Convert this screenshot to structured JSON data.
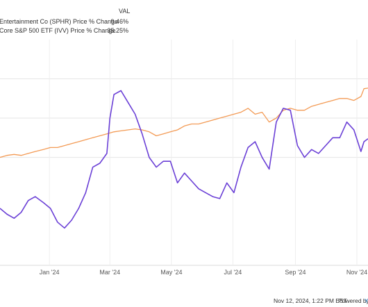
{
  "legend": {
    "header": "VAL",
    "rows": [
      {
        "label": "Entertainment Co (SPHR) Price % Change",
        "value": "9.46%",
        "color": "#6a3fd6"
      },
      {
        "label": "Core S&P 500 ETF (IVV) Price % Change",
        "value": "35.25%",
        "color": "#f39a54"
      }
    ]
  },
  "footer": {
    "timestamp": "Nov 12, 2024, 1:22 PM EST",
    "powered_by": "Powered by"
  },
  "chart_data": {
    "type": "line",
    "xlabel": "",
    "ylabel": "",
    "x_ticks": [
      "Jan '24",
      "Mar '24",
      "May '24",
      "Jul '24",
      "Sep '24",
      "Nov '24"
    ],
    "x_tick_dates": [
      "2024-01-01",
      "2024-03-01",
      "2024-05-01",
      "2024-07-01",
      "2024-09-01",
      "2024-11-01"
    ],
    "x_range": [
      "2023-11-13",
      "2024-11-12"
    ],
    "y_range": [
      -55,
      60
    ],
    "grid": {
      "horizontal_at": [
        0,
        20,
        40
      ],
      "vertical": true
    },
    "y_tick_labels_visible": false,
    "legend_placement": "top-left",
    "series": [
      {
        "name": "Entertainment Co (SPHR) Price % Change",
        "color": "#6a3fd6",
        "points": [
          [
            "2023-11-13",
            -26
          ],
          [
            "2023-11-20",
            -29
          ],
          [
            "2023-11-27",
            -31
          ],
          [
            "2023-12-04",
            -28
          ],
          [
            "2023-12-11",
            -22
          ],
          [
            "2023-12-18",
            -20
          ],
          [
            "2023-12-26",
            -23
          ],
          [
            "2024-01-02",
            -26
          ],
          [
            "2024-01-09",
            -33
          ],
          [
            "2024-01-16",
            -36
          ],
          [
            "2024-01-23",
            -32
          ],
          [
            "2024-01-30",
            -26
          ],
          [
            "2024-02-06",
            -18
          ],
          [
            "2024-02-13",
            -5
          ],
          [
            "2024-02-20",
            -3
          ],
          [
            "2024-02-27",
            2
          ],
          [
            "2024-03-01",
            20
          ],
          [
            "2024-03-05",
            32
          ],
          [
            "2024-03-12",
            34
          ],
          [
            "2024-03-19",
            28
          ],
          [
            "2024-03-26",
            22
          ],
          [
            "2024-04-02",
            12
          ],
          [
            "2024-04-09",
            0
          ],
          [
            "2024-04-16",
            -5
          ],
          [
            "2024-04-23",
            -2
          ],
          [
            "2024-04-30",
            -2
          ],
          [
            "2024-05-07",
            -13
          ],
          [
            "2024-05-14",
            -8
          ],
          [
            "2024-05-21",
            -12
          ],
          [
            "2024-05-28",
            -16
          ],
          [
            "2024-06-04",
            -18
          ],
          [
            "2024-06-11",
            -20
          ],
          [
            "2024-06-18",
            -21
          ],
          [
            "2024-06-25",
            -13
          ],
          [
            "2024-07-02",
            -18
          ],
          [
            "2024-07-09",
            -5
          ],
          [
            "2024-07-16",
            5
          ],
          [
            "2024-07-23",
            8
          ],
          [
            "2024-07-30",
            0
          ],
          [
            "2024-08-06",
            -6
          ],
          [
            "2024-08-13",
            18
          ],
          [
            "2024-08-20",
            25
          ],
          [
            "2024-08-27",
            24
          ],
          [
            "2024-09-03",
            6
          ],
          [
            "2024-09-10",
            0
          ],
          [
            "2024-09-17",
            4
          ],
          [
            "2024-09-24",
            2
          ],
          [
            "2024-10-01",
            6
          ],
          [
            "2024-10-08",
            10
          ],
          [
            "2024-10-15",
            10
          ],
          [
            "2024-10-22",
            18
          ],
          [
            "2024-10-29",
            14
          ],
          [
            "2024-11-05",
            3
          ],
          [
            "2024-11-08",
            8
          ],
          [
            "2024-11-12",
            9.46
          ]
        ]
      },
      {
        "name": "Core S&P 500 ETF (IVV) Price % Change",
        "color": "#f39a54",
        "points": [
          [
            "2023-11-13",
            0
          ],
          [
            "2023-11-20",
            1
          ],
          [
            "2023-11-27",
            1.5
          ],
          [
            "2023-12-04",
            1
          ],
          [
            "2023-12-11",
            2
          ],
          [
            "2023-12-18",
            3
          ],
          [
            "2023-12-26",
            4
          ],
          [
            "2024-01-02",
            5
          ],
          [
            "2024-01-09",
            5
          ],
          [
            "2024-01-16",
            6
          ],
          [
            "2024-01-23",
            7
          ],
          [
            "2024-01-30",
            8
          ],
          [
            "2024-02-06",
            9
          ],
          [
            "2024-02-13",
            10
          ],
          [
            "2024-02-20",
            11
          ],
          [
            "2024-02-27",
            12
          ],
          [
            "2024-03-05",
            13
          ],
          [
            "2024-03-12",
            13.5
          ],
          [
            "2024-03-19",
            14
          ],
          [
            "2024-03-26",
            14.5
          ],
          [
            "2024-04-02",
            14
          ],
          [
            "2024-04-09",
            13
          ],
          [
            "2024-04-16",
            11
          ],
          [
            "2024-04-23",
            12
          ],
          [
            "2024-04-30",
            13
          ],
          [
            "2024-05-07",
            14
          ],
          [
            "2024-05-14",
            16
          ],
          [
            "2024-05-21",
            17
          ],
          [
            "2024-05-28",
            17
          ],
          [
            "2024-06-04",
            18
          ],
          [
            "2024-06-11",
            19
          ],
          [
            "2024-06-18",
            20
          ],
          [
            "2024-06-25",
            21
          ],
          [
            "2024-07-02",
            22
          ],
          [
            "2024-07-09",
            23
          ],
          [
            "2024-07-16",
            25
          ],
          [
            "2024-07-23",
            22
          ],
          [
            "2024-07-30",
            23
          ],
          [
            "2024-08-06",
            18
          ],
          [
            "2024-08-13",
            20
          ],
          [
            "2024-08-20",
            24
          ],
          [
            "2024-08-27",
            25
          ],
          [
            "2024-09-03",
            24
          ],
          [
            "2024-09-10",
            24
          ],
          [
            "2024-09-17",
            26
          ],
          [
            "2024-09-24",
            27
          ],
          [
            "2024-10-01",
            28
          ],
          [
            "2024-10-08",
            29
          ],
          [
            "2024-10-15",
            30
          ],
          [
            "2024-10-22",
            30
          ],
          [
            "2024-10-29",
            29
          ],
          [
            "2024-11-05",
            31
          ],
          [
            "2024-11-08",
            35
          ],
          [
            "2024-11-12",
            35.25
          ]
        ]
      }
    ]
  }
}
